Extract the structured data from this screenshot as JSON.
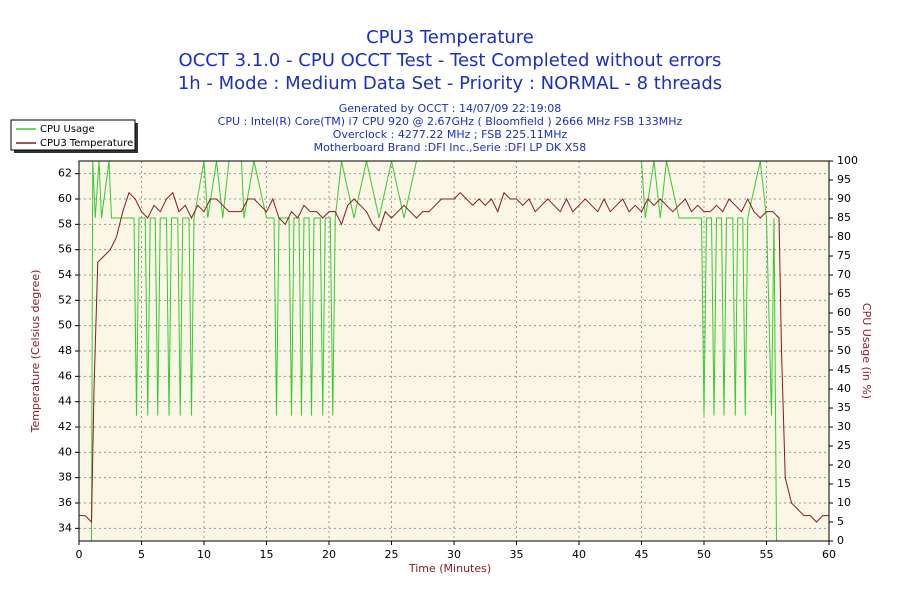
{
  "chart_data": {
    "type": "line",
    "title": "CPU3 Temperature",
    "subtitle": [
      "OCCT 3.1.0 - CPU OCCT Test - Test Completed without errors",
      "1h - Mode : Medium Data Set - Priority : NORMAL - 8 threads"
    ],
    "info": [
      "Generated by OCCT : 14/07/09 22:19:08",
      "CPU : Intel(R) Core(TM) i7 CPU 920 @ 2.67GHz ( Bloomfield ) 2666 MHz FSB 133MHz",
      "Overclock : 4277.22 MHz ; FSB 225.11MHz",
      "Motherboard Brand :DFI Inc.,Serie :DFI LP DK X58"
    ],
    "xlabel": "Time (Minutes)",
    "ylabel": "Temperature (Celsius degree)",
    "y2label": "CPU Usage (in %)",
    "xlim": [
      0,
      60
    ],
    "xticks": [
      0,
      5,
      10,
      15,
      20,
      25,
      30,
      35,
      40,
      45,
      50,
      55,
      60
    ],
    "ylim": [
      33,
      63
    ],
    "yticks": [
      34,
      36,
      38,
      40,
      42,
      44,
      46,
      48,
      50,
      52,
      54,
      56,
      58,
      60,
      62
    ],
    "y2lim": [
      0,
      100
    ],
    "y2ticks": [
      0,
      5,
      10,
      15,
      20,
      25,
      30,
      35,
      40,
      45,
      50,
      55,
      60,
      65,
      70,
      75,
      80,
      85,
      90,
      95,
      100
    ],
    "grid": true,
    "legend": "top-left",
    "series": [
      {
        "name": "CPU Usage",
        "color": "#33cc33",
        "axis": "y2",
        "x": [
          0,
          1,
          1.1,
          1.3,
          1.6,
          1.8,
          2.4,
          2.6,
          3.3,
          4.4,
          4.6,
          4.8,
          5.3,
          5.5,
          5.7,
          6.1,
          6.3,
          6.5,
          7.0,
          7.2,
          7.4,
          7.9,
          8.1,
          8.3,
          8.8,
          9.0,
          9.2,
          10,
          10.3,
          11,
          11.5,
          12,
          13,
          13.2,
          14,
          15,
          15.6,
          15.8,
          16,
          16.8,
          17,
          17.2,
          17.6,
          17.8,
          18,
          18.4,
          18.6,
          18.8,
          19.3,
          19.5,
          19.7,
          20.1,
          20.3,
          20.5,
          21,
          22,
          23,
          24,
          25,
          26,
          27,
          45,
          45.3,
          46,
          46.5,
          47,
          48,
          49,
          49.8,
          50,
          50.2,
          50.6,
          50.8,
          51,
          51.4,
          51.6,
          51.8,
          52.3,
          52.5,
          52.7,
          53.1,
          53.3,
          53.5,
          54.5,
          55,
          55.4,
          55.6,
          55.8,
          60
        ],
        "values": [
          0,
          0,
          100,
          85,
          100,
          85,
          100,
          85,
          85,
          85,
          33,
          85,
          85,
          33,
          85,
          85,
          33,
          85,
          85,
          33,
          85,
          85,
          33,
          85,
          85,
          33,
          85,
          100,
          85,
          100,
          85,
          100,
          100,
          85,
          100,
          85,
          85,
          33,
          85,
          85,
          33,
          85,
          85,
          33,
          85,
          85,
          33,
          85,
          85,
          33,
          85,
          85,
          33,
          85,
          100,
          85,
          100,
          85,
          100,
          85,
          100,
          100,
          85,
          100,
          85,
          100,
          85,
          85,
          85,
          33,
          85,
          85,
          33,
          85,
          85,
          33,
          85,
          85,
          33,
          85,
          85,
          33,
          85,
          100,
          85,
          33,
          85,
          0,
          0
        ]
      },
      {
        "name": "CPU3 Temperature",
        "color": "#8b1a1a",
        "x": [
          0,
          0.5,
          1,
          1.2,
          1.5,
          2,
          2.5,
          3,
          3.5,
          4,
          4.5,
          5,
          5.5,
          6,
          6.5,
          7,
          7.5,
          8,
          8.5,
          9,
          9.5,
          10,
          10.5,
          11,
          11.5,
          12,
          12.5,
          13,
          13.5,
          14,
          14.5,
          15,
          15.5,
          16,
          16.5,
          17,
          17.5,
          18,
          18.5,
          19,
          19.5,
          20,
          20.5,
          21,
          21.5,
          22,
          22.5,
          23,
          23.5,
          24,
          24.5,
          25,
          25.5,
          26,
          26.5,
          27,
          27.5,
          28,
          28.5,
          29,
          29.5,
          30,
          30.5,
          31,
          31.5,
          32,
          32.5,
          33,
          33.5,
          34,
          34.5,
          35,
          35.5,
          36,
          36.5,
          37,
          37.5,
          38,
          38.5,
          39,
          39.5,
          40,
          40.5,
          41,
          41.5,
          42,
          42.5,
          43,
          43.5,
          44,
          44.5,
          45,
          45.5,
          46,
          46.5,
          47,
          47.5,
          48,
          48.5,
          49,
          49.5,
          50,
          50.5,
          51,
          51.5,
          52,
          52.5,
          53,
          53.5,
          54,
          54.5,
          55,
          55.5,
          56,
          56.2,
          56.5,
          57,
          57.5,
          58,
          58.5,
          59,
          59.5,
          60
        ],
        "values": [
          35,
          35,
          34.5,
          45,
          55,
          55.5,
          56,
          57,
          59,
          60.5,
          60,
          59,
          58.5,
          59.5,
          59,
          60,
          60.5,
          59,
          59.5,
          58.5,
          59.5,
          59,
          60,
          60,
          59.5,
          59,
          59,
          59,
          60,
          60,
          59.5,
          59,
          60,
          58.5,
          58,
          59,
          58.5,
          59.5,
          59,
          59,
          58.5,
          59,
          59,
          58,
          59.5,
          60,
          59.5,
          59,
          58,
          57.5,
          59,
          58.5,
          59,
          59.5,
          59,
          58.5,
          59,
          59,
          59.5,
          60,
          60,
          60,
          60.5,
          60,
          59.5,
          60,
          59.5,
          60,
          59,
          60.5,
          60,
          60,
          59.5,
          60,
          59,
          59.5,
          60,
          59.5,
          59,
          60,
          59,
          59.5,
          60,
          59.5,
          59,
          60,
          59,
          59.5,
          60,
          59,
          59.5,
          59,
          60,
          59.5,
          60,
          59.5,
          59,
          59.5,
          60,
          59,
          59.5,
          59,
          59,
          59.5,
          59,
          60,
          59.5,
          59,
          60,
          59,
          58.5,
          59,
          59,
          58.5,
          48,
          38,
          36,
          35.5,
          35,
          35,
          34.5,
          35,
          35
        ]
      }
    ]
  }
}
